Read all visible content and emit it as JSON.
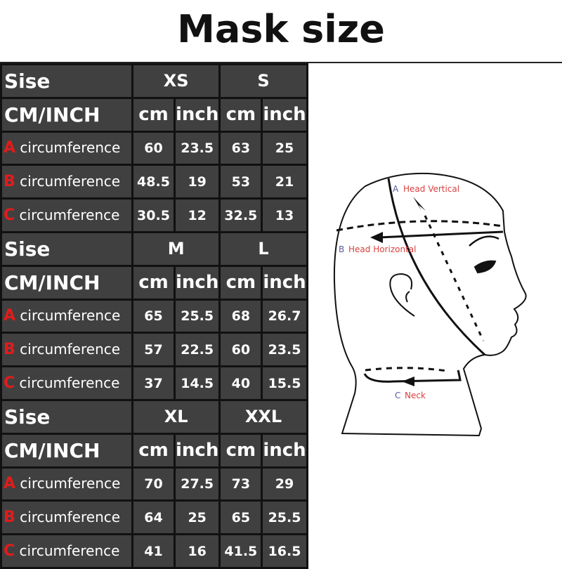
{
  "title": "Mask size",
  "table": {
    "groups": [
      {
        "size_label": "Sise",
        "sizes": [
          "XS",
          "S"
        ],
        "unit_label": "CM/INCH",
        "units": [
          "cm",
          "inch",
          "cm",
          "inch"
        ],
        "rows": [
          {
            "letter": "A",
            "label": "circumference",
            "values": [
              "60",
              "23.5",
              "63",
              "25"
            ]
          },
          {
            "letter": "B",
            "label": "circumference",
            "values": [
              "48.5",
              "19",
              "53",
              "21"
            ]
          },
          {
            "letter": "C",
            "label": "circumference",
            "values": [
              "30.5",
              "12",
              "32.5",
              "13"
            ]
          }
        ]
      },
      {
        "size_label": "Sise",
        "sizes": [
          "M",
          "L"
        ],
        "unit_label": "CM/INCH",
        "units": [
          "cm",
          "inch",
          "cm",
          "inch"
        ],
        "rows": [
          {
            "letter": "A",
            "label": "circumference",
            "values": [
              "65",
              "25.5",
              "68",
              "26.7"
            ]
          },
          {
            "letter": "B",
            "label": "circumference",
            "values": [
              "57",
              "22.5",
              "60",
              "23.5"
            ]
          },
          {
            "letter": "C",
            "label": "circumference",
            "values": [
              "37",
              "14.5",
              "40",
              "15.5"
            ]
          }
        ]
      },
      {
        "size_label": "Sise",
        "sizes": [
          "XL",
          "XXL"
        ],
        "unit_label": "CM/INCH",
        "units": [
          "cm",
          "inch",
          "cm",
          "inch"
        ],
        "rows": [
          {
            "letter": "A",
            "label": "circumference",
            "values": [
              "70",
              "27.5",
              "73",
              "29"
            ]
          },
          {
            "letter": "B",
            "label": "circumference",
            "values": [
              "64",
              "25",
              "65",
              "25.5"
            ]
          },
          {
            "letter": "C",
            "label": "circumference",
            "values": [
              "41",
              "16",
              "41.5",
              "16.5"
            ]
          }
        ]
      }
    ]
  },
  "diagram": {
    "a_letter": "A",
    "a_label": "Head Vertical",
    "b_letter": "B",
    "b_label": "Head Horizontal",
    "c_letter": "C",
    "c_label": "Neck"
  },
  "colors": {
    "table_bg": "#404040",
    "letter_red": "#e31b1b",
    "label_red": "#d9413f",
    "label_blue": "#5a5aa0"
  }
}
